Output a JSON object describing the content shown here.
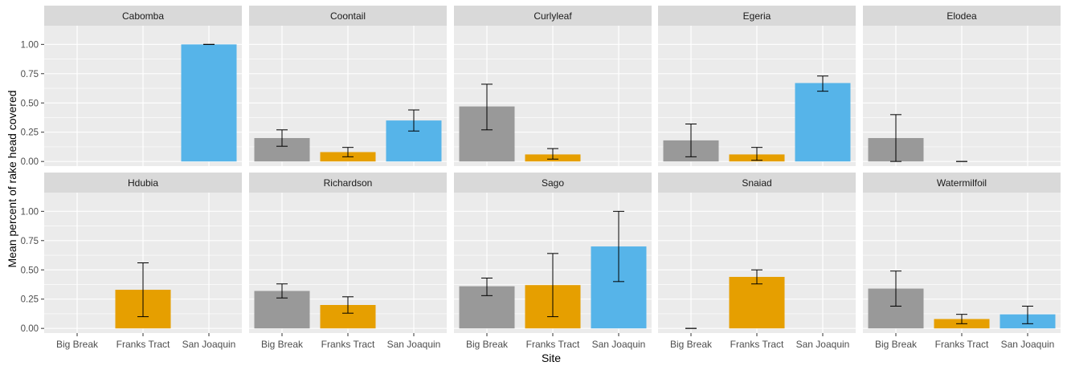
{
  "chart_data": {
    "type": "bar",
    "layout": "facet-grid 2 rows x 5 columns",
    "xlabel": "Site",
    "ylabel": "Mean percent of rake head covered",
    "ylim": [
      -0.04,
      1.16
    ],
    "yticks": [
      0.0,
      0.25,
      0.5,
      0.75,
      1.0
    ],
    "ytick_labels": [
      "0.00",
      "0.25",
      "0.50",
      "0.75",
      "1.00"
    ],
    "categories": [
      "Big Break",
      "Franks Tract",
      "San Joaquin"
    ],
    "colors": {
      "Big Break": "#999999",
      "Franks Tract": "#E69F00",
      "San Joaquin": "#56B4E9",
      "panel_bg": "#EBEBEB",
      "strip_bg": "#D9D9D9",
      "grid": "#FFFFFF"
    },
    "grid": true,
    "legend": "none",
    "facets": [
      {
        "name": "Cabomba",
        "values": [
          null,
          null,
          1.0
        ],
        "errors": [
          null,
          null,
          [
            1.0,
            1.0
          ]
        ]
      },
      {
        "name": "Coontail",
        "values": [
          0.2,
          0.08,
          0.35
        ],
        "errors": [
          [
            0.13,
            0.27
          ],
          [
            0.04,
            0.12
          ],
          [
            0.26,
            0.44
          ]
        ]
      },
      {
        "name": "Curlyleaf",
        "values": [
          0.47,
          0.06,
          null
        ],
        "errors": [
          [
            0.27,
            0.66
          ],
          [
            0.02,
            0.11
          ],
          null
        ]
      },
      {
        "name": "Egeria",
        "values": [
          0.18,
          0.06,
          0.67
        ],
        "errors": [
          [
            0.04,
            0.32
          ],
          [
            0.01,
            0.12
          ],
          [
            0.6,
            0.73
          ]
        ]
      },
      {
        "name": "Elodea",
        "values": [
          0.2,
          0.0,
          null
        ],
        "errors": [
          [
            0.0,
            0.4
          ],
          [
            0.0,
            0.0
          ],
          null
        ]
      },
      {
        "name": "Hdubia",
        "values": [
          null,
          0.33,
          null
        ],
        "errors": [
          null,
          [
            0.1,
            0.56
          ],
          null
        ]
      },
      {
        "name": "Richardson",
        "values": [
          0.32,
          0.2,
          null
        ],
        "errors": [
          [
            0.26,
            0.38
          ],
          [
            0.13,
            0.27
          ],
          null
        ]
      },
      {
        "name": "Sago",
        "values": [
          0.36,
          0.37,
          0.7
        ],
        "errors": [
          [
            0.28,
            0.43
          ],
          [
            0.1,
            0.64
          ],
          [
            0.4,
            1.0
          ]
        ]
      },
      {
        "name": "Snaiad",
        "values": [
          0.0,
          0.44,
          null
        ],
        "errors": [
          [
            0.0,
            0.0
          ],
          [
            0.38,
            0.5
          ],
          null
        ]
      },
      {
        "name": "Watermilfoil",
        "values": [
          0.34,
          0.08,
          0.12
        ],
        "errors": [
          [
            0.19,
            0.49
          ],
          [
            0.04,
            0.12
          ],
          [
            0.04,
            0.19
          ]
        ]
      }
    ]
  }
}
